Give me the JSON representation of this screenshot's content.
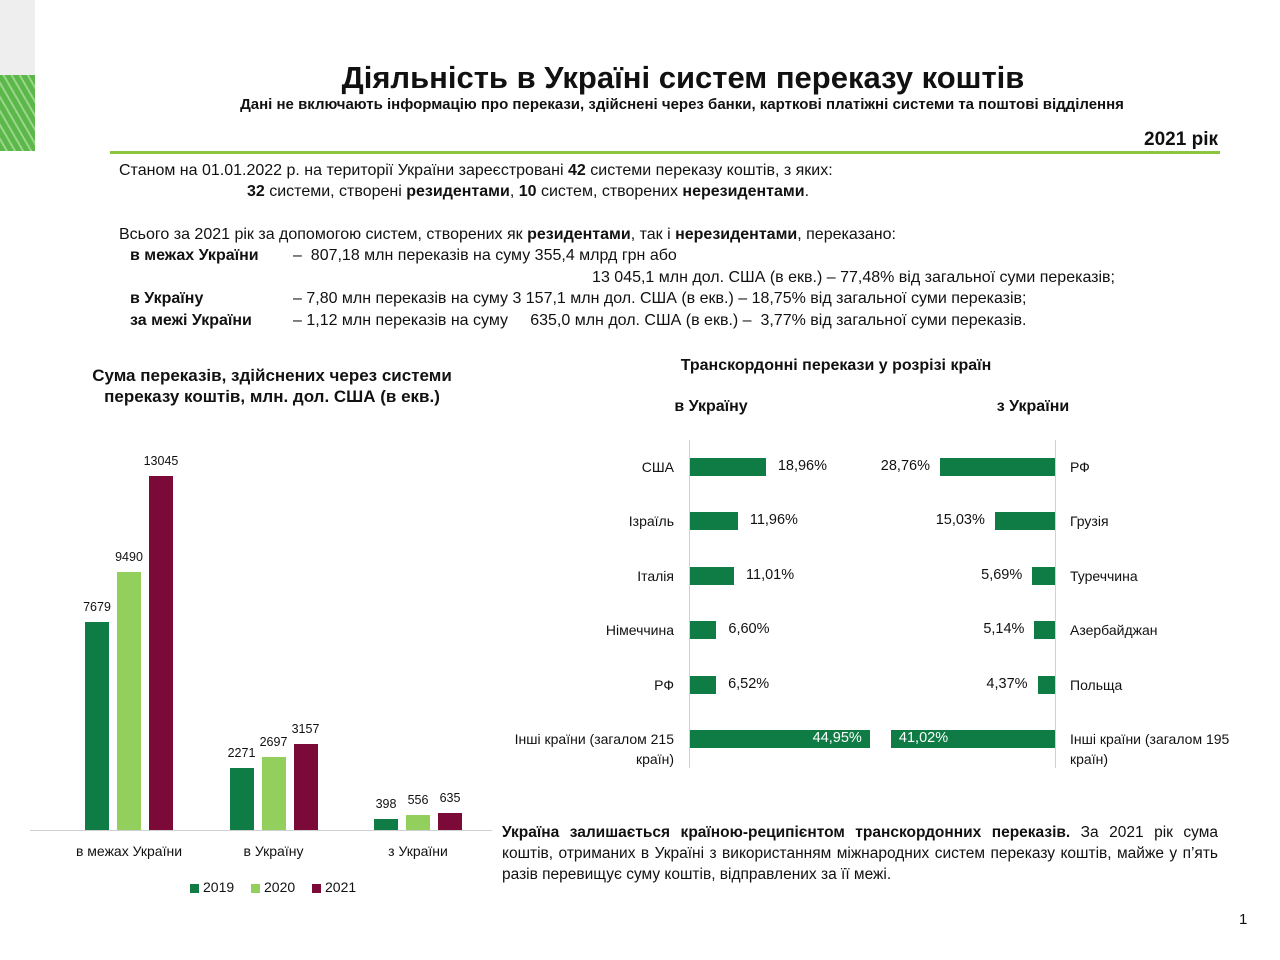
{
  "header": {
    "title": "Діяльність в Україні систем переказу коштів",
    "subtitle": "Дані не включають інформацію про перекази, здійснені через банки, карткові платіжні системи та поштові відділення",
    "year": "2021 рік"
  },
  "intro": {
    "lines": [
      [
        {
          "text": "Станом на 01.01.2022 р. на території України зареєстровані ",
          "bold": false
        },
        {
          "text": "42",
          "bold": true
        },
        {
          "text": " системи переказу коштів, з яких:",
          "bold": false
        }
      ],
      [
        {
          "text": "32",
          "bold": true
        },
        {
          "text": " системи, створені ",
          "bold": false
        },
        {
          "text": "резидентами",
          "bold": true
        },
        {
          "text": ", ",
          "bold": false
        },
        {
          "text": "10",
          "bold": true
        },
        {
          "text": " систем, створених ",
          "bold": false
        },
        {
          "text": "нерезидентами",
          "bold": true
        },
        {
          "text": ".",
          "bold": false
        }
      ],
      [
        {
          "text": "Всього за 2021 рік за допомогою систем, створених як ",
          "bold": false
        },
        {
          "text": "резидентами",
          "bold": true
        },
        {
          "text": ", так і ",
          "bold": false
        },
        {
          "text": "нерезидентами",
          "bold": true
        },
        {
          "text": ", переказано:",
          "bold": false
        }
      ]
    ],
    "rows": [
      {
        "label": "в межах України",
        "lines": [
          "–  807,18 млн переказів на суму 355,4 млрд грн або",
          "13 045,1 млн дол. США (в екв.) – 77,48% від загальної суми переказів;"
        ]
      },
      {
        "label": "в Україну",
        "lines": [
          "– 7,80 млн переказів на суму 3 157,1 млн дол. США (в екв.) – 18,75% від загальної суми переказів;"
        ]
      },
      {
        "label": "за межі України",
        "lines": [
          "– 1,12 млн переказів на суму     635,0 млн дол. США (в екв.) –  3,77% від загальної суми переказів."
        ]
      }
    ]
  },
  "chart_data": [
    {
      "type": "bar",
      "title": "Сума переказів, здійснених через системи переказу коштів, млн. дол. США (в екв.)",
      "categories": [
        "в межах України",
        "в Україну",
        "з України"
      ],
      "series": [
        {
          "name": "2019",
          "color": "#0f7b45",
          "values": [
            7679,
            2271,
            398
          ]
        },
        {
          "name": "2020",
          "color": "#92cf5c",
          "values": [
            9490,
            2697,
            556
          ]
        },
        {
          "name": "2021",
          "color": "#7b0a38",
          "values": [
            13045,
            3157,
            635
          ]
        }
      ],
      "legend": "bottom"
    },
    {
      "type": "barh",
      "title": "в Україну",
      "color": "#0f7b45",
      "categories": [
        "США",
        "Ізраїль",
        "Італія",
        "Німеччина",
        "РФ",
        "Інші країни (загалом 215 країн)"
      ],
      "values": [
        18.96,
        11.96,
        11.01,
        6.6,
        6.52,
        44.95
      ],
      "value_labels": [
        "18,96%",
        "11,96%",
        "11,01%",
        "6,60%",
        "6,52%",
        "44,95%"
      ]
    },
    {
      "type": "barh",
      "title": "з України",
      "color": "#0f7b45",
      "categories": [
        "РФ",
        "Грузія",
        "Туреччина",
        "Азербайджан",
        "Польща",
        "Інші країни (загалом 195 країн)"
      ],
      "values": [
        28.76,
        15.03,
        5.69,
        5.14,
        4.37,
        41.02
      ],
      "value_labels": [
        "28,76%",
        "15,03%",
        "5,69%",
        "5,14%",
        "4,37%",
        "41,02%"
      ]
    }
  ],
  "cross_border_title": "Транскордонні перекази у розрізі країн",
  "conclusion": [
    {
      "text": "Україна залишається країною-реципієнтом транскордонних переказів.",
      "bold": true
    },
    {
      "text": " За 2021 рік сума коштів, отриманих в Україні з використанням міжнародних систем переказу коштів, майже у п’ять разів перевищує суму коштів, відправлених за її межі.",
      "bold": false
    }
  ],
  "page_number": "1"
}
